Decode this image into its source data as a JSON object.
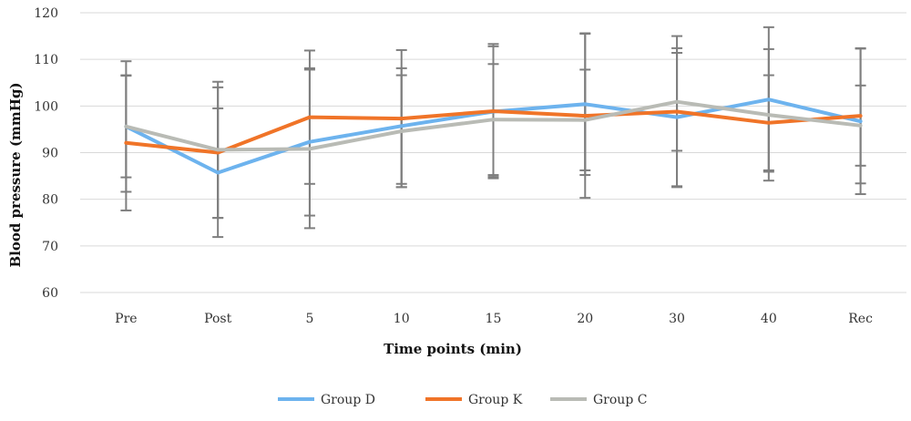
{
  "chart_data": {
    "type": "line",
    "title": "",
    "xlabel": "Time points (min)",
    "ylabel": "Blood pressure (mmHg)",
    "ylim": [
      60,
      120
    ],
    "yticks": [
      60,
      70,
      80,
      90,
      100,
      110,
      120
    ],
    "grid": "horizontal",
    "legend_position": "bottom",
    "categories": [
      "Pre",
      "Post",
      "5",
      "10",
      "15",
      "20",
      "30",
      "40",
      "Rec"
    ],
    "error_bar_color": "#7f7f7f",
    "series": [
      {
        "name": "Group D",
        "color": "#6db3ee",
        "values": [
          95.6,
          85.7,
          92.3,
          95.7,
          98.8,
          100.4,
          97.6,
          101.4,
          96.7
        ],
        "error": [
          14.0,
          13.8,
          15.8,
          12.4,
          14.0,
          15.2,
          14.8,
          15.5,
          15.6
        ]
      },
      {
        "name": "Group K",
        "color": "#f07428",
        "values": [
          92.1,
          90.0,
          97.6,
          97.3,
          98.9,
          97.9,
          98.8,
          96.4,
          97.9
        ],
        "error": [
          14.5,
          14.0,
          14.3,
          14.7,
          14.4,
          17.6,
          16.2,
          10.2,
          14.5
        ]
      },
      {
        "name": "Group C",
        "color": "#b9bbb5",
        "values": [
          95.6,
          90.6,
          90.8,
          94.6,
          97.1,
          97.0,
          100.9,
          98.1,
          95.8
        ],
        "error": [
          10.9,
          14.6,
          17.0,
          12.0,
          11.9,
          10.8,
          10.5,
          14.1,
          8.6
        ]
      }
    ]
  }
}
